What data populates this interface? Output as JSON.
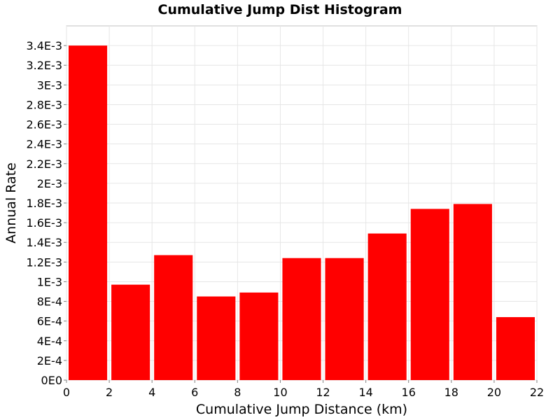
{
  "chart_data": {
    "type": "bar",
    "title": "Cumulative Jump Dist Histogram",
    "xlabel": "Cumulative Jump Distance (km)",
    "ylabel": "Annual Rate",
    "xlim": [
      0,
      22
    ],
    "ylim": [
      0,
      0.0036
    ],
    "grid": true,
    "bar_color": "#ff0000",
    "x_ticks": [
      0,
      2,
      4,
      6,
      8,
      10,
      12,
      14,
      16,
      18,
      20,
      22
    ],
    "x_tick_labels": [
      "0",
      "2",
      "4",
      "6",
      "8",
      "10",
      "12",
      "14",
      "16",
      "18",
      "20",
      "22"
    ],
    "y_ticks": [
      0,
      0.0002,
      0.0004,
      0.0006,
      0.0008,
      0.001,
      0.0012,
      0.0014,
      0.0016,
      0.0018,
      0.002,
      0.0022,
      0.0024,
      0.0026,
      0.0028,
      0.003,
      0.0032,
      0.0034
    ],
    "y_tick_labels": [
      "0E0",
      "2E-4",
      "4E-4",
      "6E-4",
      "8E-4",
      "1E-3",
      "1.2E-3",
      "1.4E-3",
      "1.6E-3",
      "1.8E-3",
      "2E-3",
      "2.2E-3",
      "2.4E-3",
      "2.6E-3",
      "2.8E-3",
      "3E-3",
      "3.2E-3",
      "3.4E-3"
    ],
    "bins": [
      {
        "x0": 0,
        "x1": 2,
        "value": 0.0034
      },
      {
        "x0": 2,
        "x1": 4,
        "value": 0.00097
      },
      {
        "x0": 4,
        "x1": 6,
        "value": 0.00127
      },
      {
        "x0": 6,
        "x1": 8,
        "value": 0.00085
      },
      {
        "x0": 8,
        "x1": 10,
        "value": 0.00089
      },
      {
        "x0": 10,
        "x1": 12,
        "value": 0.00124
      },
      {
        "x0": 12,
        "x1": 14,
        "value": 0.00124
      },
      {
        "x0": 14,
        "x1": 16,
        "value": 0.00149
      },
      {
        "x0": 16,
        "x1": 18,
        "value": 0.00174
      },
      {
        "x0": 18,
        "x1": 20,
        "value": 0.00179
      },
      {
        "x0": 20,
        "x1": 22,
        "value": 0.00064
      }
    ]
  }
}
